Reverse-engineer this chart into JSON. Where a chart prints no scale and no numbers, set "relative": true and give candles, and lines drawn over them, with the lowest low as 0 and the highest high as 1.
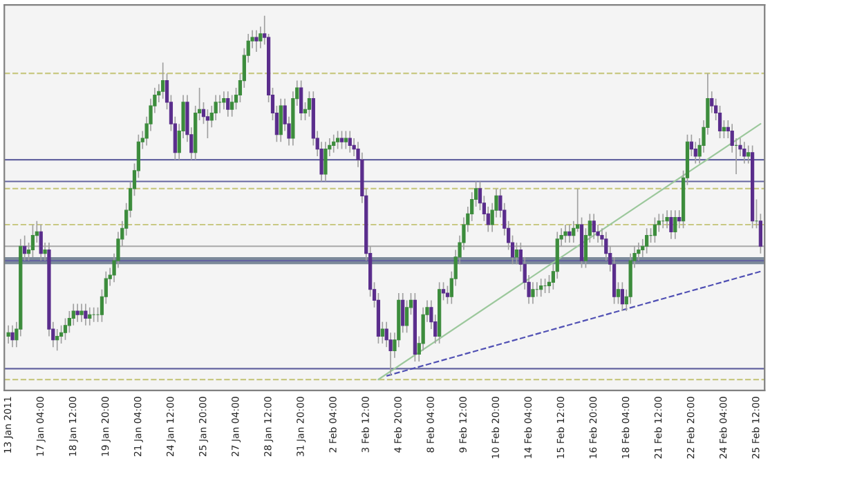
{
  "chart_data": {
    "type": "candlestick",
    "relative": true,
    "colors": [
      "#3c8c3c",
      "#5a2d8c",
      "#3c8c3c",
      "#3c8c3c",
      "#5a2d8c",
      "#3c8c3c",
      "#3c8c3c",
      "#3c8c3c",
      "#5a2d8c",
      "#3c8c3c",
      "#5a2d8c",
      "#5a2d8c",
      "#3c8c3c",
      "#3c8c3c",
      "#3c8c3c",
      "#3c8c3c",
      "#3c8c3c",
      "#5a2d8c",
      "#3c8c3c",
      "#5a2d8c",
      "#3c8c3c",
      "#3c8c3c",
      "#3c8c3c",
      "#3c8c3c",
      "#3c8c3c",
      "#3c8c3c",
      "#3c8c3c",
      "#3c8c3c",
      "#3c8c3c",
      "#3c8c3c",
      "#3c8c3c",
      "#3c8c3c",
      "#3c8c3c",
      "#3c8c3c",
      "#3c8c3c",
      "#3c8c3c",
      "#3c8c3c",
      "#3c8c3c",
      "#3c8c3c",
      "#5a2d8c",
      "#5a2d8c",
      "#5a2d8c",
      "#3c8c3c",
      "#3c8c3c",
      "#5a2d8c",
      "#5a2d8c",
      "#3c8c3c",
      "#3c8c3c",
      "#5a2d8c",
      "#5a2d8c",
      "#3c8c3c",
      "#3c8c3c",
      "#3c8c3c",
      "#3c8c3c",
      "#5a2d8c",
      "#3c8c3c",
      "#3c8c3c",
      "#3c8c3c",
      "#3c8c3c",
      "#3c8c3c",
      "#3c8c3c",
      "#5a2d8c",
      "#3c8c3c",
      "#5a2d8c",
      "#5a2d8c",
      "#5a2d8c",
      "#5a2d8c",
      "#3c8c3c",
      "#5a2d8c",
      "#5a2d8c",
      "#3c8c3c",
      "#3c8c3c",
      "#5a2d8c",
      "#3c8c3c",
      "#3c8c3c",
      "#5a2d8c",
      "#5a2d8c",
      "#5a2d8c",
      "#3c8c3c",
      "#3c8c3c",
      "#3c8c3c",
      "#3c8c3c",
      "#5a2d8c",
      "#3c8c3c",
      "#5a2d8c",
      "#5a2d8c",
      "#5a2d8c",
      "#5a2d8c",
      "#5a2d8c",
      "#5a2d8c",
      "#5a2d8c",
      "#5a2d8c",
      "#3c8c3c",
      "#5a2d8c",
      "#5a2d8c",
      "#3c8c3c",
      "#3c8c3c",
      "#5a2d8c",
      "#3c8c3c",
      "#3c8c3c",
      "#5a2d8c",
      "#3c8c3c",
      "#3c8c3c",
      "#3c8c3c",
      "#5a2d8c",
      "#5a2d8c",
      "#3c8c3c",
      "#5a2d8c",
      "#5a2d8c",
      "#3c8c3c",
      "#3c8c3c",
      "#3c8c3c",
      "#3c8c3c",
      "#3c8c3c",
      "#3c8c3c",
      "#3c8c3c",
      "#5a2d8c",
      "#5a2d8c",
      "#5a2d8c",
      "#3c8c3c",
      "#3c8c3c",
      "#5a2d8c",
      "#5a2d8c",
      "#5a2d8c",
      "#5a2d8c",
      "#3c8c3c",
      "#5a2d8c",
      "#5a2d8c",
      "#5a2d8c",
      "#3c8c3c",
      "#3c8c3c",
      "#3c8c3c",
      "#3c8c3c",
      "#3c8c3c",
      "#3c8c3c",
      "#3c8c3c",
      "#3c8c3c",
      "#3c8c3c",
      "#5a2d8c",
      "#3c8c3c",
      "#3c8c3c",
      "#5a2d8c",
      "#3c8c3c",
      "#3c8c3c",
      "#5a2d8c",
      "#5a2d8c",
      "#5a2d8c",
      "#5a2d8c",
      "#5a2d8c",
      "#5a2d8c",
      "#3c8c3c",
      "#5a2d8c",
      "#3c8c3c",
      "#3c8c3c",
      "#3c8c3c",
      "#3c8c3c",
      "#3c8c3c",
      "#3c8c3c",
      "#3c8c3c",
      "#3c8c3c",
      "#3c8c3c",
      "#3c8c3c",
      "#3c8c3c",
      "#5a2d8c",
      "#3c8c3c",
      "#5a2d8c",
      "#3c8c3c",
      "#3c8c3c",
      "#5a2d8c",
      "#5a2d8c",
      "#3c8c3c",
      "#3c8c3c",
      "#3c8c3c",
      "#5a2d8c",
      "#5a2d8c",
      "#5a2d8c",
      "#3c8c3c",
      "#5a2d8c",
      "#5a2d8c",
      "#3c8c3c",
      "#5a2d8c",
      "#5a2d8c",
      "#3c8c3c",
      "#5a2d8c",
      "#3c8c3c",
      "#5a2d8c"
    ],
    "categories": [
      "13 Jan 2011",
      null,
      null,
      null,
      null,
      null,
      null,
      null,
      "17 Jan 04:00",
      null,
      null,
      null,
      null,
      null,
      null,
      null,
      "18 Jan 12:00",
      null,
      null,
      null,
      null,
      null,
      null,
      null,
      "19 Jan 20:00",
      null,
      null,
      null,
      null,
      null,
      null,
      null,
      "21 Jan 04:00",
      null,
      null,
      null,
      null,
      null,
      null,
      null,
      "24 Jan 12:00",
      null,
      null,
      null,
      null,
      null,
      null,
      null,
      "25 Jan 20:00",
      null,
      null,
      null,
      null,
      null,
      null,
      null,
      "27 Jan 04:00",
      null,
      null,
      null,
      null,
      null,
      null,
      null,
      "28 Jan 12:00",
      null,
      null,
      null,
      null,
      null,
      null,
      null,
      "31 Jan 20:00",
      null,
      null,
      null,
      null,
      null,
      null,
      null,
      "2 Feb 04:00",
      null,
      null,
      null,
      null,
      null,
      null,
      null,
      "3 Feb 12:00",
      null,
      null,
      null,
      null,
      null,
      null,
      null,
      "4 Feb 20:00",
      null,
      null,
      null,
      null,
      null,
      null,
      null,
      "8 Feb 04:00",
      null,
      null,
      null,
      null,
      null,
      null,
      null,
      "9 Feb 12:00",
      null,
      null,
      null,
      null,
      null,
      null,
      null,
      "10 Feb 20:00",
      null,
      null,
      null,
      null,
      null,
      null,
      null,
      "14 Feb 04:00",
      null,
      null,
      null,
      null,
      null,
      null,
      null,
      "15 Feb 12:00",
      null,
      null,
      null,
      null,
      null,
      null,
      null,
      "16 Feb 20:00",
      null,
      null,
      null,
      null,
      null,
      null,
      null,
      "18 Feb 04:00",
      null,
      null,
      null,
      null,
      null,
      null,
      null,
      "21 Feb 12:00",
      null,
      null,
      null,
      null,
      null,
      null,
      null,
      "22 Feb 20:00",
      null,
      null,
      null,
      null,
      null,
      null,
      null,
      "24 Feb 04:00",
      null,
      null,
      null,
      null,
      null,
      null,
      null,
      "25 Feb 12:00",
      null
    ],
    "ohlc": [
      [
        0.11,
        0.14,
        0.09,
        0.12
      ],
      [
        0.12,
        0.14,
        0.08,
        0.1
      ],
      [
        0.1,
        0.15,
        0.08,
        0.13
      ],
      [
        0.13,
        0.38,
        0.11,
        0.36
      ],
      [
        0.36,
        0.39,
        0.32,
        0.34
      ],
      [
        0.34,
        0.37,
        0.32,
        0.35
      ],
      [
        0.35,
        0.42,
        0.33,
        0.39
      ],
      [
        0.39,
        0.43,
        0.37,
        0.4
      ],
      [
        0.4,
        0.42,
        0.32,
        0.34
      ],
      [
        0.34,
        0.37,
        0.32,
        0.35
      ],
      [
        0.35,
        0.37,
        0.11,
        0.13
      ],
      [
        0.13,
        0.15,
        0.08,
        0.1
      ],
      [
        0.1,
        0.13,
        0.07,
        0.11
      ],
      [
        0.11,
        0.14,
        0.09,
        0.12
      ],
      [
        0.12,
        0.16,
        0.1,
        0.14
      ],
      [
        0.14,
        0.18,
        0.12,
        0.16
      ],
      [
        0.16,
        0.2,
        0.14,
        0.18
      ],
      [
        0.18,
        0.2,
        0.15,
        0.17
      ],
      [
        0.17,
        0.2,
        0.15,
        0.18
      ],
      [
        0.18,
        0.2,
        0.14,
        0.16
      ],
      [
        0.16,
        0.19,
        0.14,
        0.17
      ],
      [
        0.17,
        0.19,
        0.15,
        0.17
      ],
      [
        0.17,
        0.19,
        0.15,
        0.17
      ],
      [
        0.17,
        0.24,
        0.15,
        0.22
      ],
      [
        0.22,
        0.29,
        0.2,
        0.27
      ],
      [
        0.27,
        0.3,
        0.25,
        0.28
      ],
      [
        0.28,
        0.34,
        0.26,
        0.32
      ],
      [
        0.32,
        0.4,
        0.3,
        0.38
      ],
      [
        0.38,
        0.43,
        0.36,
        0.41
      ],
      [
        0.41,
        0.48,
        0.39,
        0.46
      ],
      [
        0.46,
        0.54,
        0.44,
        0.52
      ],
      [
        0.52,
        0.59,
        0.5,
        0.57
      ],
      [
        0.57,
        0.67,
        0.55,
        0.65
      ],
      [
        0.65,
        0.68,
        0.63,
        0.66
      ],
      [
        0.66,
        0.72,
        0.64,
        0.7
      ],
      [
        0.7,
        0.77,
        0.68,
        0.75
      ],
      [
        0.75,
        0.8,
        0.73,
        0.78
      ],
      [
        0.78,
        0.81,
        0.76,
        0.79
      ],
      [
        0.79,
        0.87,
        0.77,
        0.82
      ],
      [
        0.82,
        0.84,
        0.74,
        0.76
      ],
      [
        0.76,
        0.78,
        0.68,
        0.7
      ],
      [
        0.7,
        0.72,
        0.6,
        0.62
      ],
      [
        0.62,
        0.7,
        0.6,
        0.68
      ],
      [
        0.68,
        0.78,
        0.66,
        0.76
      ],
      [
        0.76,
        0.78,
        0.65,
        0.67
      ],
      [
        0.67,
        0.69,
        0.6,
        0.62
      ],
      [
        0.62,
        0.75,
        0.6,
        0.73
      ],
      [
        0.73,
        0.8,
        0.71,
        0.74
      ],
      [
        0.74,
        0.76,
        0.7,
        0.72
      ],
      [
        0.72,
        0.74,
        0.66,
        0.71
      ],
      [
        0.71,
        0.75,
        0.69,
        0.73
      ],
      [
        0.73,
        0.78,
        0.71,
        0.76
      ],
      [
        0.76,
        0.78,
        0.73,
        0.76
      ],
      [
        0.76,
        0.79,
        0.74,
        0.77
      ],
      [
        0.77,
        0.79,
        0.72,
        0.74
      ],
      [
        0.74,
        0.78,
        0.72,
        0.76
      ],
      [
        0.76,
        0.8,
        0.74,
        0.78
      ],
      [
        0.78,
        0.84,
        0.76,
        0.82
      ],
      [
        0.82,
        0.91,
        0.8,
        0.89
      ],
      [
        0.89,
        0.95,
        0.87,
        0.93
      ],
      [
        0.93,
        0.96,
        0.91,
        0.94
      ],
      [
        0.94,
        0.96,
        0.9,
        0.93
      ],
      [
        0.93,
        0.97,
        0.91,
        0.95
      ],
      [
        0.95,
        1.0,
        0.92,
        0.94
      ],
      [
        0.94,
        0.95,
        0.76,
        0.78
      ],
      [
        0.78,
        0.8,
        0.71,
        0.73
      ],
      [
        0.73,
        0.75,
        0.65,
        0.67
      ],
      [
        0.67,
        0.77,
        0.65,
        0.75
      ],
      [
        0.75,
        0.77,
        0.68,
        0.7
      ],
      [
        0.7,
        0.72,
        0.64,
        0.66
      ],
      [
        0.66,
        0.79,
        0.64,
        0.77
      ],
      [
        0.77,
        0.82,
        0.75,
        0.8
      ],
      [
        0.8,
        0.82,
        0.71,
        0.73
      ],
      [
        0.73,
        0.76,
        0.71,
        0.74
      ],
      [
        0.74,
        0.79,
        0.72,
        0.77
      ],
      [
        0.77,
        0.79,
        0.64,
        0.66
      ],
      [
        0.66,
        0.68,
        0.61,
        0.63
      ],
      [
        0.63,
        0.65,
        0.54,
        0.56
      ],
      [
        0.56,
        0.65,
        0.54,
        0.63
      ],
      [
        0.63,
        0.66,
        0.61,
        0.64
      ],
      [
        0.64,
        0.67,
        0.62,
        0.65
      ],
      [
        0.65,
        0.68,
        0.63,
        0.66
      ],
      [
        0.66,
        0.68,
        0.63,
        0.65
      ],
      [
        0.65,
        0.68,
        0.63,
        0.66
      ],
      [
        0.66,
        0.68,
        0.62,
        0.64
      ],
      [
        0.64,
        0.66,
        0.61,
        0.63
      ],
      [
        0.63,
        0.65,
        0.58,
        0.6
      ],
      [
        0.6,
        0.62,
        0.48,
        0.5
      ],
      [
        0.5,
        0.52,
        0.32,
        0.34
      ],
      [
        0.34,
        0.36,
        0.22,
        0.24
      ],
      [
        0.24,
        0.26,
        0.19,
        0.21
      ],
      [
        0.21,
        0.23,
        0.09,
        0.11
      ],
      [
        0.11,
        0.15,
        0.09,
        0.13
      ],
      [
        0.13,
        0.15,
        0.08,
        0.1
      ],
      [
        0.1,
        0.12,
        0.0,
        0.07
      ],
      [
        0.07,
        0.12,
        0.05,
        0.1
      ],
      [
        0.1,
        0.23,
        0.08,
        0.21
      ],
      [
        0.21,
        0.23,
        0.12,
        0.14
      ],
      [
        0.14,
        0.21,
        0.12,
        0.19
      ],
      [
        0.19,
        0.23,
        0.17,
        0.21
      ],
      [
        0.21,
        0.23,
        0.04,
        0.06
      ],
      [
        0.06,
        0.11,
        0.04,
        0.09
      ],
      [
        0.09,
        0.19,
        0.07,
        0.17
      ],
      [
        0.17,
        0.21,
        0.15,
        0.19
      ],
      [
        0.19,
        0.21,
        0.13,
        0.15
      ],
      [
        0.15,
        0.17,
        0.09,
        0.11
      ],
      [
        0.11,
        0.26,
        0.09,
        0.24
      ],
      [
        0.24,
        0.26,
        0.21,
        0.23
      ],
      [
        0.23,
        0.25,
        0.2,
        0.22
      ],
      [
        0.22,
        0.29,
        0.2,
        0.27
      ],
      [
        0.27,
        0.35,
        0.25,
        0.33
      ],
      [
        0.33,
        0.39,
        0.31,
        0.37
      ],
      [
        0.37,
        0.44,
        0.35,
        0.42
      ],
      [
        0.42,
        0.47,
        0.4,
        0.45
      ],
      [
        0.45,
        0.51,
        0.43,
        0.49
      ],
      [
        0.49,
        0.54,
        0.47,
        0.52
      ],
      [
        0.52,
        0.54,
        0.46,
        0.48
      ],
      [
        0.48,
        0.5,
        0.43,
        0.45
      ],
      [
        0.45,
        0.47,
        0.4,
        0.42
      ],
      [
        0.42,
        0.48,
        0.4,
        0.46
      ],
      [
        0.46,
        0.52,
        0.44,
        0.5
      ],
      [
        0.5,
        0.52,
        0.44,
        0.46
      ],
      [
        0.46,
        0.48,
        0.39,
        0.41
      ],
      [
        0.41,
        0.43,
        0.35,
        0.37
      ],
      [
        0.37,
        0.39,
        0.31,
        0.33
      ],
      [
        0.33,
        0.37,
        0.31,
        0.35
      ],
      [
        0.35,
        0.37,
        0.29,
        0.31
      ],
      [
        0.31,
        0.33,
        0.24,
        0.26
      ],
      [
        0.26,
        0.28,
        0.2,
        0.22
      ],
      [
        0.22,
        0.26,
        0.2,
        0.24
      ],
      [
        0.24,
        0.26,
        0.22,
        0.24
      ],
      [
        0.24,
        0.27,
        0.22,
        0.25
      ],
      [
        0.25,
        0.27,
        0.23,
        0.25
      ],
      [
        0.25,
        0.28,
        0.23,
        0.26
      ],
      [
        0.26,
        0.31,
        0.24,
        0.29
      ],
      [
        0.29,
        0.4,
        0.27,
        0.38
      ],
      [
        0.38,
        0.41,
        0.36,
        0.39
      ],
      [
        0.39,
        0.42,
        0.37,
        0.4
      ],
      [
        0.4,
        0.42,
        0.37,
        0.39
      ],
      [
        0.39,
        0.43,
        0.37,
        0.41
      ],
      [
        0.41,
        0.52,
        0.4,
        0.42
      ],
      [
        0.42,
        0.44,
        0.3,
        0.32
      ],
      [
        0.32,
        0.41,
        0.3,
        0.39
      ],
      [
        0.39,
        0.45,
        0.37,
        0.43
      ],
      [
        0.43,
        0.45,
        0.38,
        0.4
      ],
      [
        0.4,
        0.42,
        0.37,
        0.39
      ],
      [
        0.39,
        0.41,
        0.36,
        0.38
      ],
      [
        0.38,
        0.4,
        0.32,
        0.34
      ],
      [
        0.34,
        0.36,
        0.29,
        0.31
      ],
      [
        0.31,
        0.33,
        0.2,
        0.22
      ],
      [
        0.22,
        0.26,
        0.2,
        0.24
      ],
      [
        0.24,
        0.26,
        0.18,
        0.2
      ],
      [
        0.2,
        0.24,
        0.18,
        0.22
      ],
      [
        0.22,
        0.34,
        0.2,
        0.32
      ],
      [
        0.32,
        0.36,
        0.3,
        0.34
      ],
      [
        0.34,
        0.37,
        0.32,
        0.35
      ],
      [
        0.35,
        0.38,
        0.33,
        0.36
      ],
      [
        0.36,
        0.41,
        0.34,
        0.39
      ],
      [
        0.39,
        0.41,
        0.37,
        0.39
      ],
      [
        0.39,
        0.44,
        0.37,
        0.42
      ],
      [
        0.42,
        0.45,
        0.4,
        0.43
      ],
      [
        0.43,
        0.45,
        0.41,
        0.43
      ],
      [
        0.43,
        0.46,
        0.41,
        0.44
      ],
      [
        0.44,
        0.46,
        0.38,
        0.4
      ],
      [
        0.4,
        0.46,
        0.38,
        0.44
      ],
      [
        0.44,
        0.46,
        0.41,
        0.43
      ],
      [
        0.43,
        0.57,
        0.41,
        0.55
      ],
      [
        0.55,
        0.67,
        0.53,
        0.65
      ],
      [
        0.65,
        0.67,
        0.61,
        0.63
      ],
      [
        0.63,
        0.65,
        0.59,
        0.61
      ],
      [
        0.61,
        0.66,
        0.59,
        0.64
      ],
      [
        0.64,
        0.71,
        0.62,
        0.69
      ],
      [
        0.69,
        0.84,
        0.67,
        0.77
      ],
      [
        0.77,
        0.79,
        0.73,
        0.75
      ],
      [
        0.75,
        0.77,
        0.71,
        0.73
      ],
      [
        0.73,
        0.75,
        0.66,
        0.68
      ],
      [
        0.68,
        0.71,
        0.66,
        0.69
      ],
      [
        0.69,
        0.71,
        0.66,
        0.68
      ],
      [
        0.68,
        0.7,
        0.62,
        0.64
      ],
      [
        0.64,
        0.66,
        0.56,
        0.64
      ],
      [
        0.64,
        0.66,
        0.61,
        0.63
      ],
      [
        0.63,
        0.65,
        0.59,
        0.61
      ],
      [
        0.61,
        0.64,
        0.59,
        0.62
      ],
      [
        0.62,
        0.64,
        0.41,
        0.43
      ],
      [
        0.43,
        0.49,
        0.41,
        0.43
      ],
      [
        0.43,
        0.45,
        0.34,
        0.36
      ]
    ],
    "series": [
      {
        "type": "line",
        "color": "#9cc89c",
        "line_style": "solid",
        "values": [
          null,
          null,
          null,
          null,
          null,
          null,
          null,
          null,
          null,
          null,
          null,
          null,
          null,
          null,
          null,
          null,
          null,
          null,
          null,
          null,
          null,
          null,
          null,
          null,
          null,
          null,
          null,
          null,
          null,
          null,
          null,
          null,
          null,
          null,
          null,
          null,
          null,
          null,
          null,
          null,
          null,
          null,
          null,
          null,
          null,
          null,
          null,
          null,
          null,
          null,
          null,
          null,
          null,
          null,
          null,
          null,
          null,
          null,
          null,
          null,
          null,
          null,
          null,
          null,
          null,
          null,
          null,
          null,
          null,
          null,
          null,
          null,
          null,
          null,
          null,
          null,
          null,
          null,
          null,
          null,
          null,
          null,
          null,
          null,
          null,
          null,
          null,
          null,
          null,
          null,
          null,
          -0.01,
          null,
          null,
          null,
          null,
          null,
          null,
          null,
          null,
          null,
          null,
          null,
          null,
          null,
          null,
          null,
          null,
          null,
          null,
          null,
          null,
          null,
          null,
          null,
          null,
          null,
          null,
          null,
          null,
          null,
          null,
          null,
          null,
          null,
          null,
          null,
          null,
          null,
          null,
          null,
          null,
          null,
          null,
          null,
          null,
          null,
          null,
          null,
          null,
          null,
          null,
          null,
          null,
          null,
          null,
          null,
          null,
          null,
          null,
          null,
          null,
          null,
          null,
          null,
          null,
          null,
          null,
          null,
          null,
          null,
          null,
          null,
          null,
          null,
          null,
          null,
          null,
          null,
          null,
          null,
          null,
          null,
          null,
          null,
          null,
          null,
          null,
          null,
          null,
          null,
          null,
          null,
          null,
          null,
          0.7
        ]
      },
      {
        "type": "line",
        "color": "#5050b4",
        "line_style": "dashed",
        "values": [
          null,
          null,
          null,
          null,
          null,
          null,
          null,
          null,
          null,
          null,
          null,
          null,
          null,
          null,
          null,
          null,
          null,
          null,
          null,
          null,
          null,
          null,
          null,
          null,
          null,
          null,
          null,
          null,
          null,
          null,
          null,
          null,
          null,
          null,
          null,
          null,
          null,
          null,
          null,
          null,
          null,
          null,
          null,
          null,
          null,
          null,
          null,
          null,
          null,
          null,
          null,
          null,
          null,
          null,
          null,
          null,
          null,
          null,
          null,
          null,
          null,
          null,
          null,
          null,
          null,
          null,
          null,
          null,
          null,
          null,
          null,
          null,
          null,
          null,
          null,
          null,
          null,
          null,
          null,
          null,
          null,
          null,
          null,
          null,
          null,
          null,
          null,
          null,
          null,
          null,
          null,
          null,
          null,
          0.0,
          null,
          null,
          null,
          null,
          null,
          null,
          null,
          null,
          null,
          null,
          null,
          null,
          null,
          null,
          null,
          null,
          null,
          null,
          null,
          null,
          null,
          null,
          null,
          null,
          null,
          null,
          null,
          null,
          null,
          null,
          null,
          null,
          null,
          null,
          null,
          null,
          null,
          null,
          null,
          null,
          null,
          null,
          null,
          null,
          null,
          null,
          null,
          null,
          null,
          null,
          null,
          null,
          null,
          null,
          null,
          null,
          null,
          null,
          null,
          null,
          null,
          null,
          null,
          null,
          null,
          null,
          null,
          null,
          null,
          null,
          null,
          null,
          null,
          null,
          null,
          null,
          null,
          null,
          null,
          null,
          null,
          null,
          null,
          null,
          null,
          null,
          null,
          null,
          null,
          null,
          null,
          0.29
        ]
      }
    ],
    "bands": [
      {
        "axis": "y",
        "from": 0.31,
        "to": 0.33,
        "color": "#7c8a9a"
      }
    ],
    "ref_lines": [
      {
        "axis": "y",
        "value": 0.6,
        "color": "#6464a0",
        "line_style": "solid"
      },
      {
        "axis": "y",
        "value": 0.54,
        "color": "#6464a0",
        "line_style": "solid"
      },
      {
        "axis": "y",
        "value": 0.36,
        "color": "#a8a8a8",
        "line_style": "solid"
      },
      {
        "axis": "y",
        "value": 0.32,
        "color": "#6464a0",
        "line_style": "solid"
      },
      {
        "axis": "y",
        "value": 0.02,
        "color": "#6464a0",
        "line_style": "solid"
      },
      {
        "axis": "y",
        "value": 0.84,
        "color": "#c8c882",
        "line_style": "dashed"
      },
      {
        "axis": "y",
        "value": 0.52,
        "color": "#c8c882",
        "line_style": "dashed"
      },
      {
        "axis": "y",
        "value": 0.42,
        "color": "#c8c882",
        "line_style": "dashed"
      },
      {
        "axis": "y",
        "value": -0.01,
        "color": "#c8c882",
        "line_style": "dashed"
      }
    ]
  }
}
